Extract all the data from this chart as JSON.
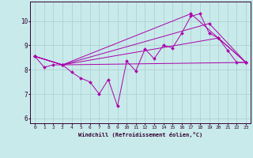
{
  "xlabel": "Windchill (Refroidissement éolien,°C)",
  "background_color": "#c8eaea",
  "line_color": "#aa00aa",
  "xlim": [
    -0.5,
    23.5
  ],
  "ylim": [
    5.8,
    10.8
  ],
  "yticks": [
    6,
    7,
    8,
    9,
    10
  ],
  "xticks": [
    0,
    1,
    2,
    3,
    4,
    5,
    6,
    7,
    8,
    9,
    10,
    11,
    12,
    13,
    14,
    15,
    16,
    17,
    18,
    19,
    20,
    21,
    22,
    23
  ],
  "series": [
    {
      "x": [
        0,
        1,
        2,
        3,
        4,
        5,
        6,
        7,
        8,
        9,
        10,
        11,
        12,
        13,
        14,
        15,
        16,
        17,
        18,
        19,
        20,
        21,
        22,
        23
      ],
      "y": [
        8.55,
        8.1,
        8.2,
        8.2,
        7.9,
        7.65,
        7.5,
        7.0,
        7.6,
        6.5,
        8.35,
        7.95,
        8.85,
        8.45,
        9.0,
        8.9,
        9.5,
        10.2,
        10.3,
        9.5,
        9.3,
        8.8,
        8.3,
        8.3
      ]
    },
    {
      "x": [
        0,
        3,
        23
      ],
      "y": [
        8.55,
        8.2,
        8.3
      ]
    },
    {
      "x": [
        0,
        3,
        20,
        23
      ],
      "y": [
        8.55,
        8.2,
        9.3,
        8.3
      ]
    },
    {
      "x": [
        0,
        3,
        19,
        23
      ],
      "y": [
        8.55,
        8.2,
        9.9,
        8.3
      ]
    },
    {
      "x": [
        0,
        3,
        17,
        23
      ],
      "y": [
        8.55,
        8.2,
        10.3,
        8.3
      ]
    }
  ]
}
